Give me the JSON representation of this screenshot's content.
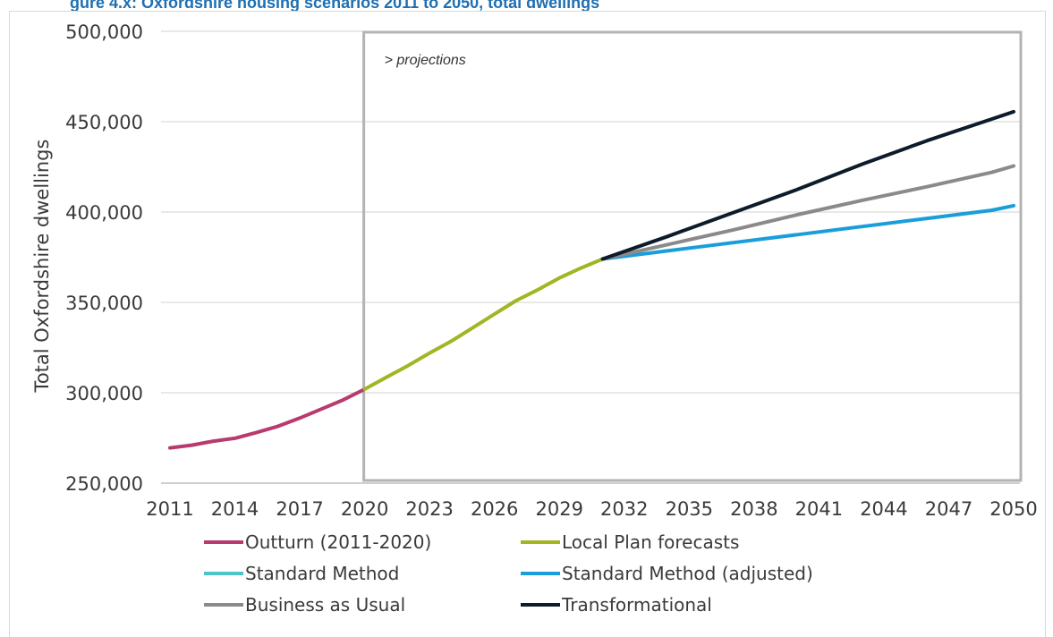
{
  "page": {
    "title": "gure 4.x: Oxfordshire housing scenarios 2011 to 2050, total dwellings"
  },
  "chart_data": {
    "type": "line",
    "title": "",
    "xlabel": "",
    "ylabel": "Total Oxfordshire dwellings",
    "xlim": [
      2011,
      2050
    ],
    "ylim": [
      250000,
      500000
    ],
    "x_ticks": [
      2011,
      2014,
      2017,
      2020,
      2023,
      2026,
      2029,
      2032,
      2035,
      2038,
      2041,
      2044,
      2047,
      2050
    ],
    "y_ticks": [
      250000,
      300000,
      350000,
      400000,
      450000,
      500000
    ],
    "y_tick_labels": [
      "250,000",
      "300,000",
      "350,000",
      "400,000",
      "450,000",
      "500,000"
    ],
    "grid": "horizontal",
    "legend_position": "bottom",
    "annotation": {
      "text": "> projections",
      "box_x": [
        2020,
        2050
      ]
    },
    "series": [
      {
        "name": "Outturn (2011-2020)",
        "color": "#b83a6e",
        "x": [
          2011,
          2012,
          2013,
          2014,
          2015,
          2016,
          2017,
          2018,
          2019,
          2020
        ],
        "values": [
          269500,
          271000,
          273200,
          274800,
          278000,
          281500,
          286000,
          291000,
          296000,
          302000
        ]
      },
      {
        "name": "Local Plan forecasts",
        "color": "#a2b523",
        "x": [
          2020,
          2021,
          2022,
          2023,
          2024,
          2025,
          2026,
          2027,
          2028,
          2029,
          2030,
          2031
        ],
        "values": [
          302000,
          308500,
          315000,
          322000,
          328500,
          336000,
          343500,
          351000,
          357000,
          363500,
          369000,
          374000
        ]
      },
      {
        "name": "Standard Method",
        "color": "#4fc3c7",
        "x": [],
        "values": []
      },
      {
        "name": "Standard Method (adjusted)",
        "color": "#1a9ddb",
        "x": [
          2031,
          2034,
          2037,
          2040,
          2043,
          2046,
          2049,
          2050
        ],
        "values": [
          374000,
          378500,
          383000,
          387500,
          392000,
          396500,
          401000,
          403500
        ]
      },
      {
        "name": "Business as Usual",
        "color": "#8a8a8a",
        "x": [
          2031,
          2034,
          2037,
          2040,
          2043,
          2046,
          2049,
          2050
        ],
        "values": [
          374000,
          382000,
          390000,
          398500,
          406500,
          414000,
          422000,
          425500
        ]
      },
      {
        "name": "Transformational",
        "color": "#0d1b2a",
        "x": [
          2031,
          2034,
          2037,
          2040,
          2043,
          2046,
          2049,
          2050
        ],
        "values": [
          374000,
          386500,
          399500,
          412500,
          426500,
          439500,
          451500,
          455500
        ]
      }
    ]
  }
}
